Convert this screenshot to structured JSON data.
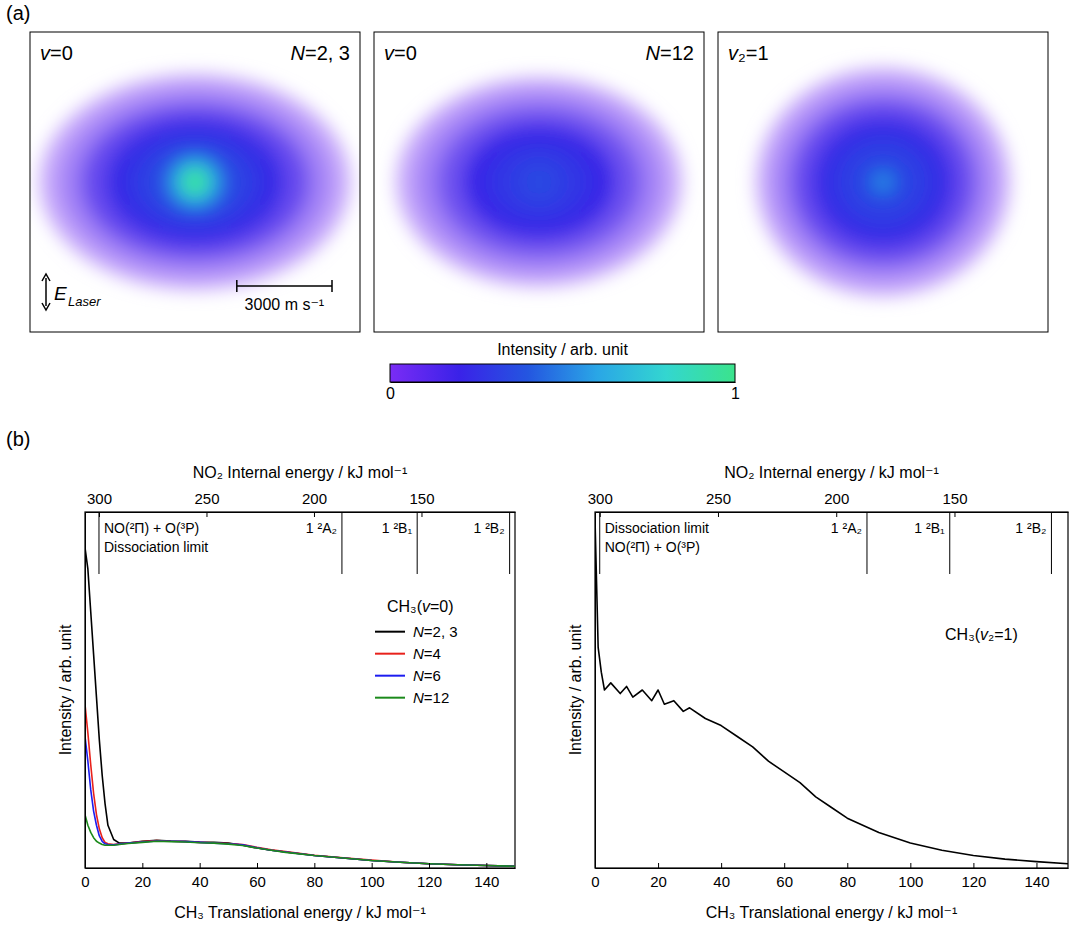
{
  "panel_labels": [
    "(a)",
    "(b)"
  ],
  "colorbar": {
    "label": "Intensity / arb. unit",
    "range": [
      0,
      1
    ],
    "ticks": [
      0,
      1
    ],
    "colors": [
      "#7a2cf5",
      "#3a22e8",
      "#2456e0",
      "#2aa6e6",
      "#33d6d0",
      "#3be38c"
    ]
  },
  "chart_data": [
    {
      "type": "image",
      "labels": {
        "left": "v=0",
        "right": "N=2, 3"
      },
      "xlim": [
        -5200,
        5200
      ],
      "ylim": [
        -4725,
        4725
      ],
      "polarization": {
        "symbol": "E",
        "subscript": "Laser"
      },
      "scale_bar": {
        "value": 3000,
        "label": "3000 m s⁻¹"
      },
      "contours": [
        {
          "vx": 4900,
          "vy": 3400,
          "intensity": 0.02
        },
        {
          "vx": 4300,
          "vy": 2950,
          "intensity": 0.08
        },
        {
          "vx": 3600,
          "vy": 2450,
          "intensity": 0.16
        },
        {
          "vx": 2800,
          "vy": 1950,
          "intensity": 0.24
        },
        {
          "vx": 2000,
          "vy": 1450,
          "intensity": 0.3
        },
        {
          "vx": 1300,
          "vy": 1050,
          "intensity": 0.38
        },
        {
          "vx": 850,
          "vy": 800,
          "intensity": 0.55
        },
        {
          "vx": 550,
          "vy": 550,
          "intensity": 0.8
        },
        {
          "vx": 330,
          "vy": 330,
          "intensity": 1.0
        }
      ]
    },
    {
      "type": "image",
      "labels": {
        "left": "v=0",
        "right": "N=12"
      },
      "xlim": [
        -5200,
        5200
      ],
      "ylim": [
        -4725,
        4725
      ],
      "contours": [
        {
          "vx": 4500,
          "vy": 3300,
          "intensity": 0.02
        },
        {
          "vx": 3900,
          "vy": 2850,
          "intensity": 0.08
        },
        {
          "vx": 3200,
          "vy": 2350,
          "intensity": 0.15
        },
        {
          "vx": 2400,
          "vy": 1800,
          "intensity": 0.22
        },
        {
          "vx": 1600,
          "vy": 1250,
          "intensity": 0.27
        },
        {
          "vx": 900,
          "vy": 800,
          "intensity": 0.31
        },
        {
          "vx": 450,
          "vy": 420,
          "intensity": 0.35
        }
      ]
    },
    {
      "type": "image",
      "labels": {
        "left": "v₂=1"
      },
      "xlim": [
        -5200,
        5200
      ],
      "ylim": [
        -4725,
        4725
      ],
      "contours": [
        {
          "vx": 4000,
          "vy": 3600,
          "intensity": 0.02
        },
        {
          "vx": 3500,
          "vy": 3100,
          "intensity": 0.08
        },
        {
          "vx": 2900,
          "vy": 2600,
          "intensity": 0.16
        },
        {
          "vx": 2200,
          "vy": 2000,
          "intensity": 0.24
        },
        {
          "vx": 1500,
          "vy": 1400,
          "intensity": 0.3
        },
        {
          "vx": 800,
          "vy": 750,
          "intensity": 0.36
        },
        {
          "vx": 400,
          "vy": 380,
          "intensity": 0.45
        },
        {
          "vx": 200,
          "vy": 200,
          "intensity": 0.58
        }
      ]
    },
    {
      "type": "line",
      "x_label": "CH₃ Translational energy / kJ mol⁻¹",
      "x2_label": "NO₂ Internal energy / kJ mol⁻¹",
      "y_label": "Intensity / arb. unit",
      "xlim": [
        0,
        150
      ],
      "xticks": [
        0,
        20,
        40,
        60,
        80,
        100,
        120,
        140
      ],
      "x2lim": [
        306.5,
        106.5
      ],
      "x2ticks": [
        300,
        250,
        200,
        150
      ],
      "ylim": [
        0,
        1
      ],
      "tick_labels": "x",
      "legend": "right",
      "legend_title": "CH₃(v=0)",
      "annotations": [
        {
          "x2": 300,
          "lines": [
            "NO(²Π) + O(³P)",
            "Dissociation limit"
          ]
        },
        {
          "x2": 187,
          "lines": [
            "1 ²A₂"
          ]
        },
        {
          "x2": 152,
          "lines": [
            "1 ²B₁"
          ]
        },
        {
          "x2": 109,
          "lines": [
            "1 ²B₂"
          ]
        }
      ],
      "x": [
        0,
        1,
        2,
        3,
        4,
        5,
        6,
        7,
        8,
        10,
        12,
        15,
        20,
        25,
        30,
        35,
        40,
        45,
        50,
        55,
        60,
        65,
        70,
        80,
        90,
        100,
        110,
        120,
        130,
        140,
        150
      ],
      "series": [
        {
          "name": "N=2, 3",
          "color": "#000000",
          "values": [
            0.9,
            0.84,
            0.72,
            0.6,
            0.48,
            0.36,
            0.26,
            0.18,
            0.12,
            0.08,
            0.07,
            0.07,
            0.075,
            0.078,
            0.076,
            0.075,
            0.073,
            0.072,
            0.07,
            0.064,
            0.056,
            0.05,
            0.045,
            0.035,
            0.028,
            0.021,
            0.016,
            0.012,
            0.009,
            0.007,
            0.005
          ]
        },
        {
          "name": "N=4",
          "color": "#e8211b",
          "values": [
            0.46,
            0.38,
            0.29,
            0.21,
            0.15,
            0.11,
            0.085,
            0.072,
            0.068,
            0.066,
            0.068,
            0.07,
            0.074,
            0.077,
            0.075,
            0.074,
            0.072,
            0.071,
            0.069,
            0.066,
            0.058,
            0.051,
            0.046,
            0.036,
            0.029,
            0.022,
            0.016,
            0.012,
            0.009,
            0.007,
            0.005
          ]
        },
        {
          "name": "N=6",
          "color": "#1c1cf0",
          "values": [
            0.37,
            0.3,
            0.22,
            0.16,
            0.12,
            0.09,
            0.075,
            0.068,
            0.066,
            0.065,
            0.067,
            0.07,
            0.073,
            0.076,
            0.075,
            0.074,
            0.072,
            0.07,
            0.068,
            0.065,
            0.057,
            0.05,
            0.045,
            0.035,
            0.028,
            0.021,
            0.016,
            0.012,
            0.009,
            0.007,
            0.005
          ]
        },
        {
          "name": "N=12",
          "color": "#1b8a1b",
          "values": [
            0.15,
            0.12,
            0.1,
            0.085,
            0.075,
            0.07,
            0.066,
            0.064,
            0.064,
            0.064,
            0.066,
            0.069,
            0.072,
            0.075,
            0.074,
            0.073,
            0.071,
            0.07,
            0.067,
            0.063,
            0.056,
            0.05,
            0.044,
            0.035,
            0.028,
            0.021,
            0.016,
            0.012,
            0.009,
            0.007,
            0.005
          ]
        }
      ]
    },
    {
      "type": "line",
      "x_label": "CH₃ Translational energy / kJ mol⁻¹",
      "x2_label": "NO₂ Internal energy / kJ mol⁻¹",
      "y_label": "Intensity / arb. unit",
      "xlim": [
        0,
        150
      ],
      "xticks": [
        0,
        20,
        40,
        60,
        80,
        100,
        120,
        140
      ],
      "x2lim": [
        302,
        102
      ],
      "x2ticks": [
        300,
        250,
        200,
        150
      ],
      "ylim": [
        0,
        1
      ],
      "tick_labels": "x",
      "label": "CH₃(v₂=1)",
      "annotations": [
        {
          "x2": 300,
          "lines": [
            "Dissociation limit",
            "NO(²Π) + O(³P)"
          ]
        },
        {
          "x2": 187,
          "lines": [
            "1 ²A₂"
          ]
        },
        {
          "x2": 152,
          "lines": [
            "1 ²B₁"
          ]
        },
        {
          "x2": 109,
          "lines": [
            "1 ²B₂"
          ]
        }
      ],
      "x": [
        0,
        0.5,
        1,
        2,
        3,
        5,
        8,
        10,
        12,
        15,
        18,
        20,
        22,
        25,
        28,
        30,
        35,
        40,
        45,
        50,
        55,
        60,
        65,
        70,
        75,
        80,
        90,
        100,
        110,
        120,
        130,
        140,
        150
      ],
      "series": [
        {
          "color": "#000000",
          "values": [
            0.98,
            0.8,
            0.62,
            0.55,
            0.5,
            0.52,
            0.49,
            0.51,
            0.48,
            0.5,
            0.47,
            0.5,
            0.46,
            0.47,
            0.44,
            0.45,
            0.42,
            0.4,
            0.37,
            0.34,
            0.3,
            0.27,
            0.24,
            0.2,
            0.17,
            0.14,
            0.1,
            0.07,
            0.05,
            0.035,
            0.025,
            0.018,
            0.012
          ]
        }
      ]
    }
  ]
}
